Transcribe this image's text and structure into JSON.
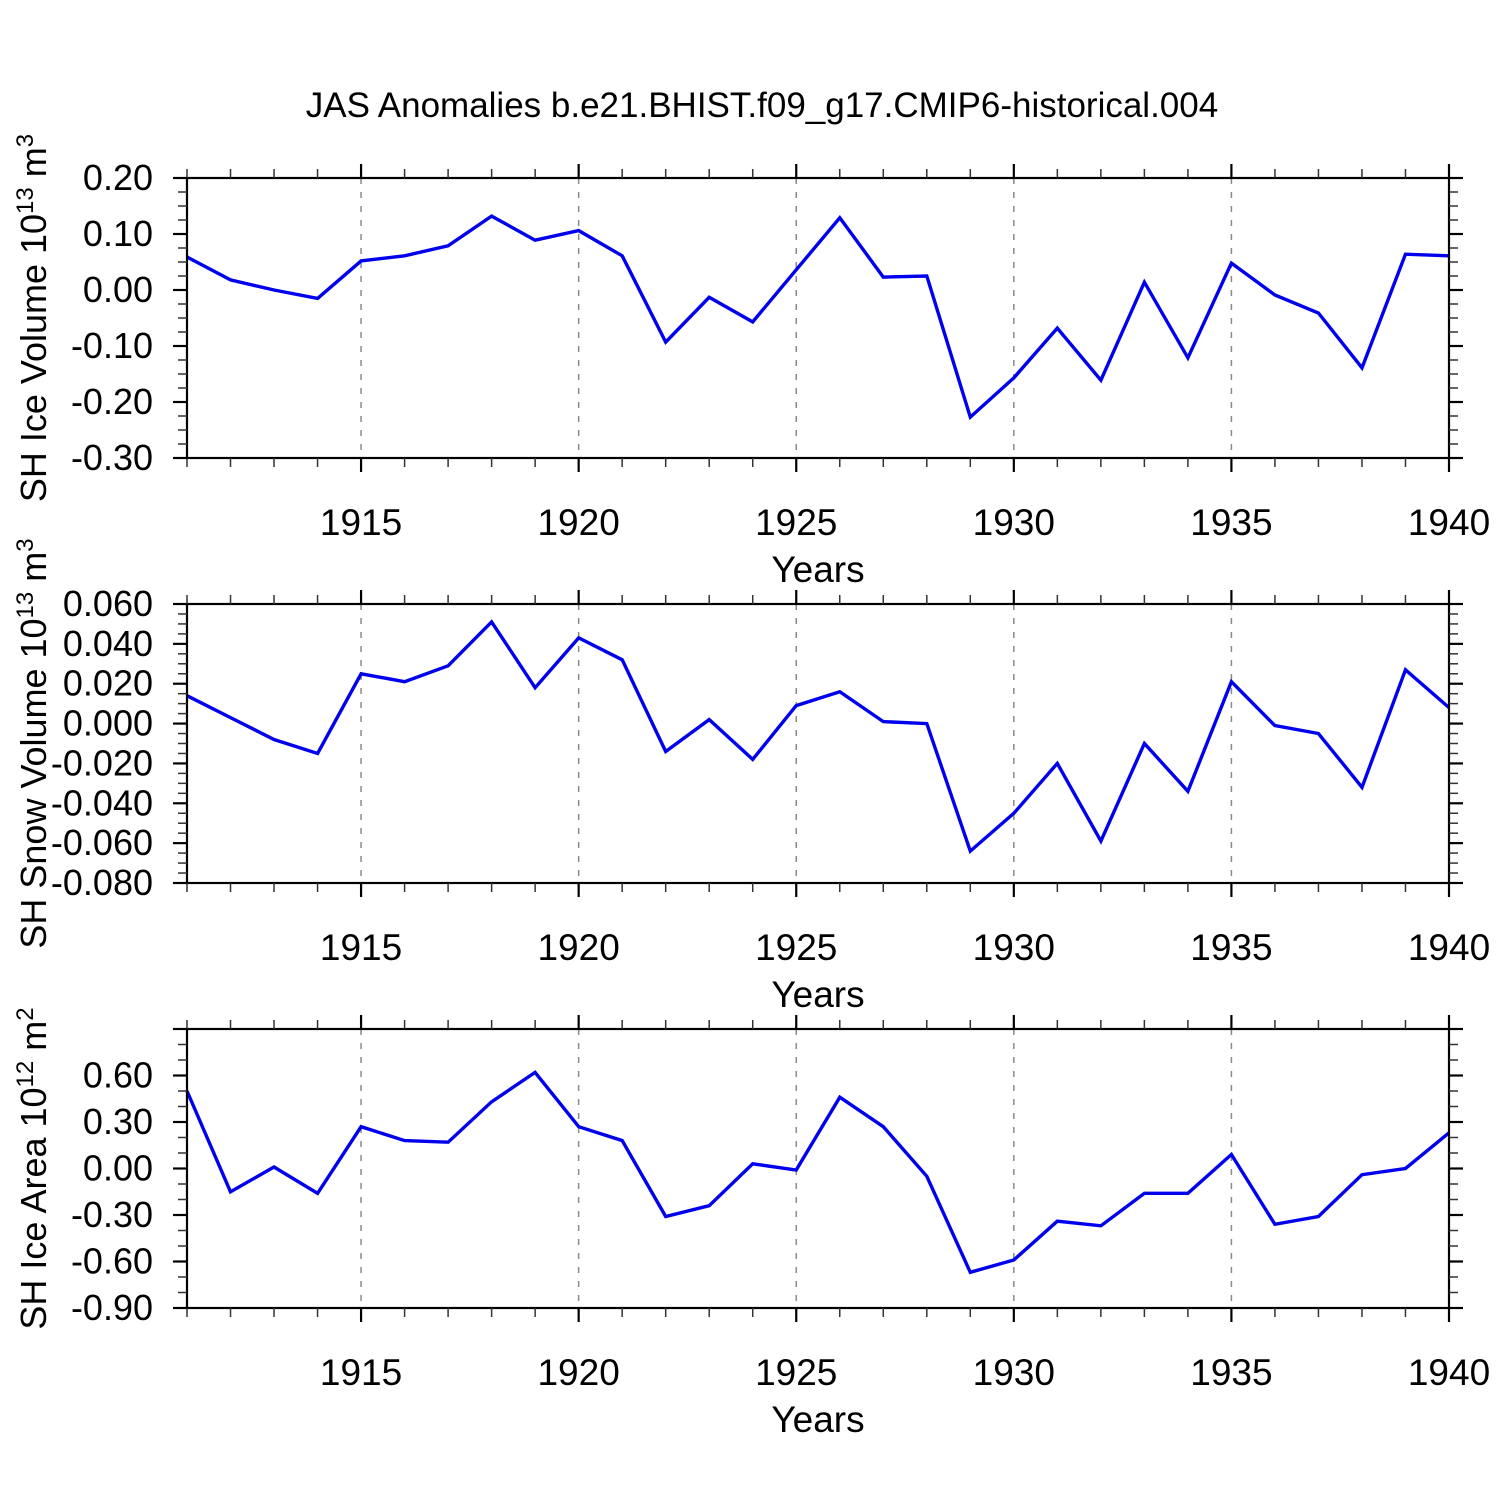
{
  "title": "JAS Anomalies b.e21.BHIST.f09_g17.CMIP6-historical.004",
  "colors": {
    "line": "#0000EE",
    "frame": "#000000",
    "grid": "#8a8a8a",
    "minor_tick": "#333333",
    "text": "#000000"
  },
  "chart_data": [
    {
      "type": "line",
      "title": "",
      "xlabel": "Years",
      "ylabel": "SH Ice Volume 10^13 m^3",
      "ylabel_parts": [
        {
          "t": "SH Ice Volume 10",
          "sup": "13"
        },
        {
          "t": " m",
          "sup": "3"
        }
      ],
      "x": [
        1911,
        1912,
        1913,
        1914,
        1915,
        1916,
        1917,
        1918,
        1919,
        1920,
        1921,
        1922,
        1923,
        1924,
        1925,
        1926,
        1927,
        1928,
        1929,
        1930,
        1931,
        1932,
        1933,
        1934,
        1935,
        1936,
        1937,
        1938,
        1939,
        1940
      ],
      "y": [
        0.059,
        0.018,
        0.0,
        -0.015,
        0.052,
        0.061,
        0.079,
        0.132,
        0.089,
        0.106,
        0.061,
        -0.093,
        -0.013,
        -0.057,
        0.036,
        0.129,
        0.023,
        0.025,
        -0.227,
        -0.157,
        -0.068,
        -0.161,
        0.014,
        -0.121,
        0.048,
        -0.009,
        -0.041,
        -0.139,
        0.064,
        0.061
      ],
      "ylim": [
        -0.3,
        0.2
      ],
      "xlim": [
        1911,
        1940
      ],
      "yticks": [
        {
          "v": 0.2,
          "label": "0.20"
        },
        {
          "v": 0.1,
          "label": "0.10"
        },
        {
          "v": 0.0,
          "label": "0.00"
        },
        {
          "v": -0.1,
          "label": "-0.10"
        },
        {
          "v": -0.2,
          "label": "-0.20"
        },
        {
          "v": -0.3,
          "label": "-0.30"
        }
      ],
      "y_minor_step": 0.025,
      "xticks": [
        {
          "v": 1915,
          "label": "1915"
        },
        {
          "v": 1920,
          "label": "1920"
        },
        {
          "v": 1925,
          "label": "1925"
        },
        {
          "v": 1930,
          "label": "1930"
        },
        {
          "v": 1935,
          "label": "1935"
        },
        {
          "v": 1940,
          "label": "1940"
        }
      ],
      "x_minor_step": 1,
      "grid_x": [
        1915,
        1920,
        1925,
        1930,
        1935
      ],
      "grid_style": "dashed",
      "legend": "none"
    },
    {
      "type": "line",
      "title": "",
      "xlabel": "Years",
      "ylabel": "SH Snow Volume 10^13 m^3",
      "ylabel_parts": [
        {
          "t": "SH Snow Volume 10",
          "sup": "13"
        },
        {
          "t": " m",
          "sup": "3"
        }
      ],
      "x": [
        1911,
        1912,
        1913,
        1914,
        1915,
        1916,
        1917,
        1918,
        1919,
        1920,
        1921,
        1922,
        1923,
        1924,
        1925,
        1926,
        1927,
        1928,
        1929,
        1930,
        1931,
        1932,
        1933,
        1934,
        1935,
        1936,
        1937,
        1938,
        1939,
        1940
      ],
      "y": [
        0.014,
        0.003,
        -0.008,
        -0.015,
        0.025,
        0.021,
        0.029,
        0.051,
        0.018,
        0.043,
        0.032,
        -0.014,
        0.002,
        -0.018,
        0.009,
        0.016,
        0.001,
        0.0,
        -0.064,
        -0.045,
        -0.02,
        -0.059,
        -0.01,
        -0.034,
        0.021,
        -0.001,
        -0.005,
        -0.032,
        0.027,
        0.008
      ],
      "ylim": [
        -0.08,
        0.06
      ],
      "xlim": [
        1911,
        1940
      ],
      "yticks": [
        {
          "v": 0.06,
          "label": "0.060"
        },
        {
          "v": 0.04,
          "label": "0.040"
        },
        {
          "v": 0.02,
          "label": "0.020"
        },
        {
          "v": 0.0,
          "label": "0.000"
        },
        {
          "v": -0.02,
          "label": "-0.020"
        },
        {
          "v": -0.04,
          "label": "-0.040"
        },
        {
          "v": -0.06,
          "label": "-0.060"
        },
        {
          "v": -0.08,
          "label": "-0.080"
        }
      ],
      "y_minor_step": 0.005,
      "xticks": [
        {
          "v": 1915,
          "label": "1915"
        },
        {
          "v": 1920,
          "label": "1920"
        },
        {
          "v": 1925,
          "label": "1925"
        },
        {
          "v": 1930,
          "label": "1930"
        },
        {
          "v": 1935,
          "label": "1935"
        },
        {
          "v": 1940,
          "label": "1940"
        }
      ],
      "x_minor_step": 1,
      "grid_x": [
        1915,
        1920,
        1925,
        1930,
        1935
      ],
      "grid_style": "dashed",
      "legend": "none"
    },
    {
      "type": "line",
      "title": "",
      "xlabel": "Years",
      "ylabel": "SH Ice Area 10^12 m^2",
      "ylabel_parts": [
        {
          "t": "SH Ice Area 10",
          "sup": "12"
        },
        {
          "t": " m",
          "sup": "2"
        }
      ],
      "x": [
        1911,
        1912,
        1913,
        1914,
        1915,
        1916,
        1917,
        1918,
        1919,
        1920,
        1921,
        1922,
        1923,
        1924,
        1925,
        1926,
        1927,
        1928,
        1929,
        1930,
        1931,
        1932,
        1933,
        1934,
        1935,
        1936,
        1937,
        1938,
        1939,
        1940
      ],
      "y": [
        0.5,
        -0.15,
        0.01,
        -0.16,
        0.27,
        0.18,
        0.17,
        0.43,
        0.62,
        0.27,
        0.18,
        -0.31,
        -0.24,
        0.03,
        -0.01,
        0.46,
        0.27,
        -0.05,
        -0.67,
        -0.59,
        -0.34,
        -0.37,
        -0.16,
        -0.16,
        0.09,
        -0.36,
        -0.31,
        -0.04,
        0.0,
        0.23
      ],
      "ylim": [
        -0.9,
        0.9
      ],
      "xlim": [
        1911,
        1940
      ],
      "yticks": [
        {
          "v": 0.9,
          "label": ""
        },
        {
          "v": 0.6,
          "label": "0.60"
        },
        {
          "v": 0.3,
          "label": "0.30"
        },
        {
          "v": 0.0,
          "label": "0.00"
        },
        {
          "v": -0.3,
          "label": "-0.30"
        },
        {
          "v": -0.6,
          "label": "-0.60"
        },
        {
          "v": -0.9,
          "label": "-0.90"
        }
      ],
      "y_minor_step": 0.1,
      "xticks": [
        {
          "v": 1915,
          "label": "1915"
        },
        {
          "v": 1920,
          "label": "1920"
        },
        {
          "v": 1925,
          "label": "1925"
        },
        {
          "v": 1930,
          "label": "1930"
        },
        {
          "v": 1935,
          "label": "1935"
        },
        {
          "v": 1940,
          "label": "1940"
        }
      ],
      "x_minor_step": 1,
      "grid_x": [
        1915,
        1920,
        1925,
        1930,
        1935
      ],
      "grid_style": "dashed",
      "legend": "none"
    }
  ]
}
